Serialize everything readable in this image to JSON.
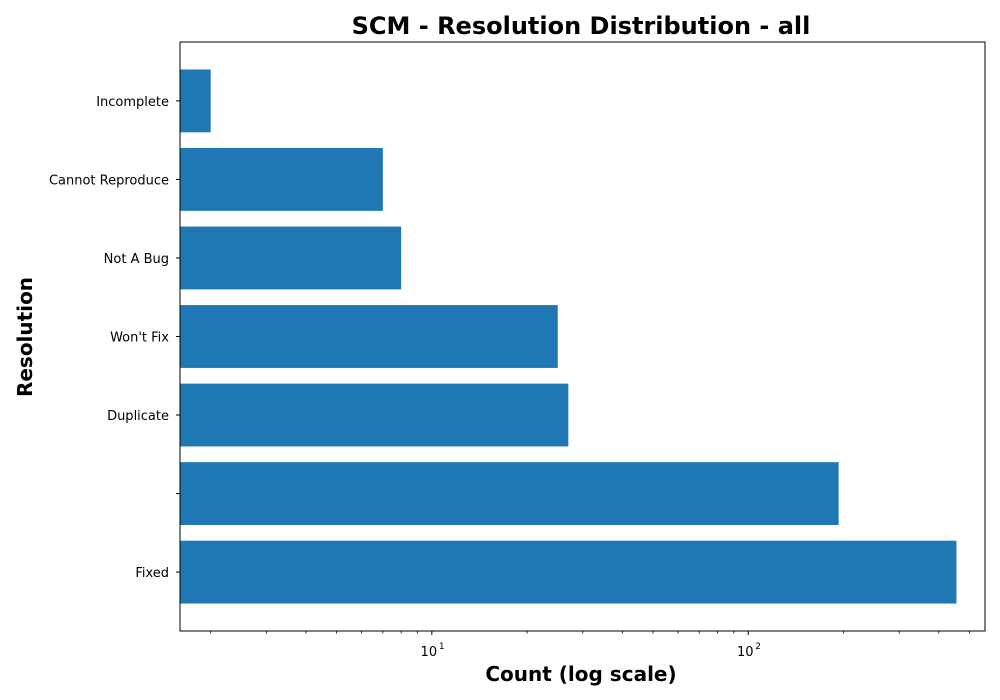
{
  "chart_data": {
    "type": "bar",
    "orientation": "horizontal",
    "title": "SCM - Resolution Distribution - all",
    "xlabel": "Count (log scale)",
    "ylabel": "Resolution",
    "x_scale": "log",
    "xlim": [
      1.6,
      560
    ],
    "x_ticks": [
      {
        "value": 10,
        "base": "10",
        "exp": "1"
      },
      {
        "value": 100,
        "base": "10",
        "exp": "2"
      }
    ],
    "categories": [
      "Fixed",
      "",
      "Duplicate",
      "Won't Fix",
      "Not A Bug",
      "Cannot Reproduce",
      "Incomplete"
    ],
    "values": [
      455,
      193,
      27,
      25,
      8,
      7,
      2
    ],
    "bar_color": "#1f77b4",
    "grid": false,
    "legend": "none"
  }
}
